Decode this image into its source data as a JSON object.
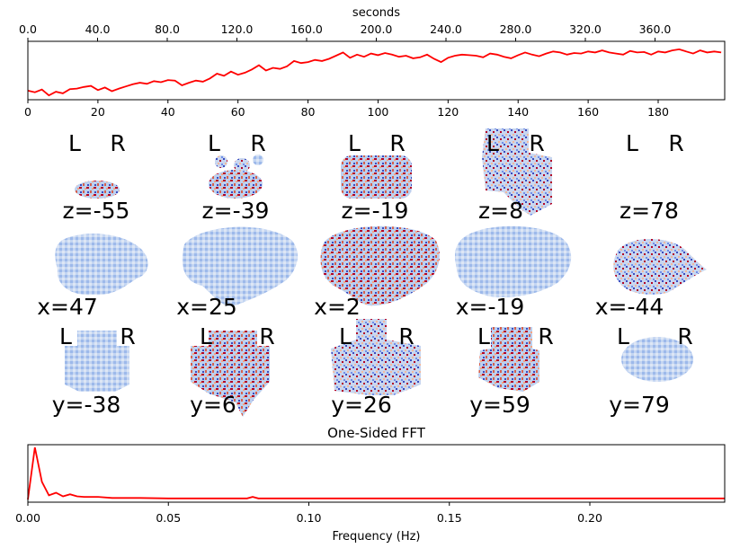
{
  "chart_data": [
    {
      "type": "line",
      "name": "timeseries",
      "top_axis": {
        "label": "seconds",
        "ticks": [
          "0.0",
          "40.0",
          "80.0",
          "120.0",
          "160.0",
          "200.0",
          "240.0",
          "280.0",
          "320.0",
          "360.0"
        ],
        "range": [
          0,
          400
        ]
      },
      "bottom_axis": {
        "ticks": [
          "0",
          "20",
          "40",
          "60",
          "80",
          "100",
          "120",
          "140",
          "160",
          "180"
        ],
        "range": [
          0,
          199
        ]
      },
      "series": [
        {
          "color": "#ff0000",
          "x": [
            0,
            2,
            4,
            6,
            8,
            10,
            12,
            14,
            16,
            18,
            20,
            22,
            24,
            26,
            28,
            30,
            32,
            34,
            36,
            38,
            40,
            42,
            44,
            46,
            48,
            50,
            52,
            54,
            56,
            58,
            60,
            62,
            64,
            66,
            68,
            70,
            72,
            74,
            76,
            78,
            80,
            82,
            84,
            86,
            88,
            90,
            92,
            94,
            96,
            98,
            100,
            102,
            104,
            106,
            108,
            110,
            112,
            114,
            116,
            118,
            120,
            122,
            124,
            126,
            128,
            130,
            132,
            134,
            136,
            138,
            140,
            142,
            144,
            146,
            148,
            150,
            152,
            154,
            156,
            158,
            160,
            162,
            164,
            166,
            168,
            170,
            172,
            174,
            176,
            178,
            180,
            182,
            184,
            186,
            188,
            190,
            192,
            194,
            196,
            198
          ],
          "y": [
            0.12,
            0.09,
            0.14,
            0.03,
            0.1,
            0.07,
            0.15,
            0.16,
            0.19,
            0.21,
            0.13,
            0.18,
            0.11,
            0.16,
            0.2,
            0.24,
            0.27,
            0.25,
            0.3,
            0.28,
            0.32,
            0.31,
            0.22,
            0.27,
            0.31,
            0.29,
            0.35,
            0.44,
            0.4,
            0.48,
            0.42,
            0.46,
            0.52,
            0.6,
            0.5,
            0.55,
            0.53,
            0.58,
            0.68,
            0.64,
            0.66,
            0.7,
            0.68,
            0.72,
            0.78,
            0.84,
            0.74,
            0.8,
            0.76,
            0.82,
            0.79,
            0.83,
            0.8,
            0.76,
            0.78,
            0.73,
            0.75,
            0.8,
            0.72,
            0.66,
            0.74,
            0.78,
            0.8,
            0.79,
            0.78,
            0.75,
            0.82,
            0.8,
            0.76,
            0.73,
            0.79,
            0.84,
            0.8,
            0.77,
            0.82,
            0.86,
            0.84,
            0.8,
            0.83,
            0.82,
            0.86,
            0.84,
            0.88,
            0.84,
            0.82,
            0.8,
            0.87,
            0.84,
            0.85,
            0.8,
            0.86,
            0.84,
            0.88,
            0.9,
            0.86,
            0.82,
            0.88,
            0.84,
            0.86,
            0.84
          ]
        }
      ]
    },
    {
      "type": "image",
      "name": "brain-slices",
      "rows": [
        {
          "axis": "z",
          "labels": [
            "z=-55",
            "z=-39",
            "z=-19",
            "z=8",
            "z=78"
          ],
          "lr": [
            "L",
            "R"
          ]
        },
        {
          "axis": "x",
          "labels": [
            "x=47",
            "x=25",
            "x=2",
            "x=-19",
            "x=-44"
          ]
        },
        {
          "axis": "y",
          "labels": [
            "y=-38",
            "y=6",
            "y=26",
            "y=59",
            "y=79"
          ],
          "lr": [
            "L",
            "R"
          ]
        }
      ],
      "colormap": "coolwarm"
    },
    {
      "type": "line",
      "name": "fft",
      "title": "One-Sided FFT",
      "xlabel": "Frequency (Hz)",
      "xlim": [
        0,
        0.248
      ],
      "x_ticks": [
        "0.00",
        "0.05",
        "0.10",
        "0.15",
        "0.20"
      ],
      "series": [
        {
          "color": "#ff0000",
          "x": [
            0.0,
            0.0025,
            0.005,
            0.0075,
            0.01,
            0.0125,
            0.015,
            0.0175,
            0.02,
            0.025,
            0.03,
            0.04,
            0.05,
            0.06,
            0.07,
            0.078,
            0.08,
            0.082,
            0.09,
            0.1,
            0.12,
            0.14,
            0.16,
            0.18,
            0.2,
            0.22,
            0.24,
            0.248
          ],
          "y": [
            0.0,
            1.0,
            0.34,
            0.08,
            0.13,
            0.06,
            0.1,
            0.06,
            0.05,
            0.05,
            0.03,
            0.03,
            0.02,
            0.02,
            0.02,
            0.02,
            0.05,
            0.02,
            0.02,
            0.02,
            0.02,
            0.02,
            0.02,
            0.02,
            0.02,
            0.02,
            0.02,
            0.02
          ]
        }
      ]
    }
  ]
}
